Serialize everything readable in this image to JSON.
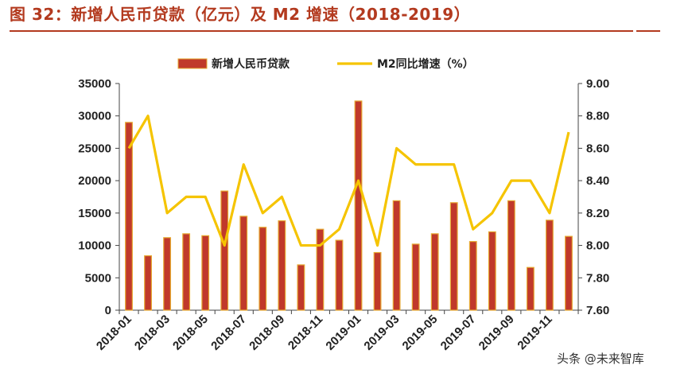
{
  "header": {
    "figure_title": "图 32：新增人民币贷款（亿元）及 M2 增速（2018-2019）"
  },
  "watermark": "头条 @未来智库",
  "chart_data": {
    "type": "bar",
    "categories": [
      "2018-01",
      "2018-02",
      "2018-03",
      "2018-04",
      "2018-05",
      "2018-06",
      "2018-07",
      "2018-08",
      "2018-09",
      "2018-10",
      "2018-11",
      "2018-12",
      "2019-01",
      "2019-02",
      "2019-03",
      "2019-04",
      "2019-05",
      "2019-06",
      "2019-07",
      "2019-08",
      "2019-09",
      "2019-10",
      "2019-11",
      "2019-12"
    ],
    "x_tick_labels": [
      "2018-01",
      "",
      "2018-03",
      "",
      "2018-05",
      "",
      "2018-07",
      "",
      "2018-09",
      "",
      "2018-11",
      "",
      "2019-01",
      "",
      "2019-03",
      "",
      "2019-05",
      "",
      "2019-07",
      "",
      "2019-09",
      "",
      "2019-11",
      ""
    ],
    "series": [
      {
        "name": "新增人民币贷款",
        "axis": "left",
        "type": "bar",
        "color": "#c0392b",
        "edge_color": "#e6a830",
        "values": [
          29000,
          8400,
          11200,
          11800,
          11500,
          18400,
          14500,
          12800,
          13800,
          7000,
          12500,
          10800,
          32300,
          8900,
          16900,
          10200,
          11800,
          16600,
          10600,
          12100,
          16900,
          6600,
          13900,
          11400
        ]
      },
      {
        "name": "M2同比增速（%）",
        "axis": "right",
        "type": "line",
        "color": "#f5c400",
        "values": [
          8.6,
          8.8,
          8.2,
          8.3,
          8.3,
          8.0,
          8.5,
          8.2,
          8.3,
          8.0,
          8.0,
          8.1,
          8.4,
          8.0,
          8.6,
          8.5,
          8.5,
          8.5,
          8.1,
          8.2,
          8.4,
          8.4,
          8.2,
          8.7
        ]
      }
    ],
    "y_left": {
      "min": 0,
      "max": 35000,
      "ticks": [
        "0",
        "5000",
        "10000",
        "15000",
        "20000",
        "25000",
        "30000",
        "35000"
      ]
    },
    "y_right": {
      "min": 7.6,
      "max": 9.0,
      "ticks": [
        "7.60",
        "7.80",
        "8.00",
        "8.20",
        "8.40",
        "8.60",
        "8.80",
        "9.00"
      ]
    },
    "legend_position": "top-center",
    "grid": false
  }
}
